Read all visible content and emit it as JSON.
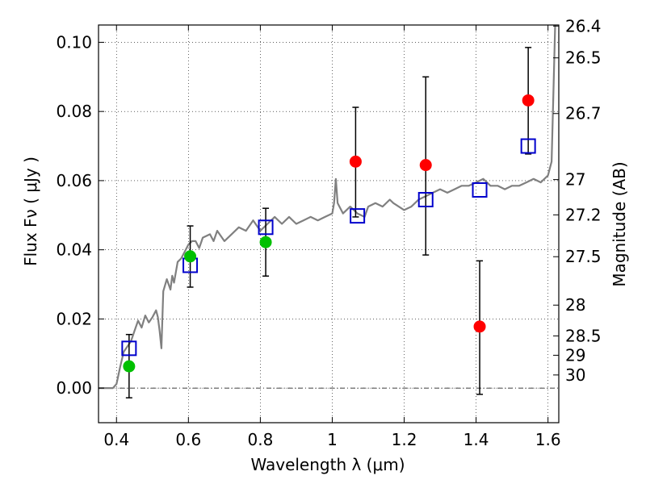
{
  "chart_data": {
    "type": "scatter",
    "xlabel": "Wavelength  λ (μm)",
    "ylabel": "Flux  Fν  ( μJy )",
    "y2label": "Magnitude (AB)",
    "xlim": [
      0.35,
      1.63
    ],
    "ylim": [
      -0.01,
      0.105
    ],
    "grid": true,
    "colors": {
      "model": "#808080",
      "red_points": "#ff0000",
      "green_points": "#00c000",
      "squares": "#0000cc",
      "error_bars": "#000000",
      "zero_line": "#000000"
    },
    "x_ticks": [
      {
        "value": 0.4,
        "label": "0.4"
      },
      {
        "value": 0.6,
        "label": "0.6"
      },
      {
        "value": 0.8,
        "label": "0.8"
      },
      {
        "value": 1.0,
        "label": "1"
      },
      {
        "value": 1.2,
        "label": "1.2"
      },
      {
        "value": 1.4,
        "label": "1.4"
      },
      {
        "value": 1.6,
        "label": "1.6"
      }
    ],
    "y_ticks": [
      {
        "value": 0.0,
        "label": "0.00"
      },
      {
        "value": 0.02,
        "label": "0.02"
      },
      {
        "value": 0.04,
        "label": "0.04"
      },
      {
        "value": 0.06,
        "label": "0.06"
      },
      {
        "value": 0.08,
        "label": "0.08"
      },
      {
        "value": 0.1,
        "label": "0.10"
      }
    ],
    "mag_ticks": [
      {
        "label": "26.4",
        "flux": 0.1047
      },
      {
        "label": "26.5",
        "flux": 0.0955
      },
      {
        "label": "26.7",
        "flux": 0.0794
      },
      {
        "label": "27",
        "flux": 0.0603
      },
      {
        "label": "27.2",
        "flux": 0.0501
      },
      {
        "label": "27.5",
        "flux": 0.038
      },
      {
        "label": "28",
        "flux": 0.024
      },
      {
        "label": "28.5",
        "flux": 0.0151
      },
      {
        "label": "29",
        "flux": 0.0095
      },
      {
        "label": "30",
        "flux": 0.0038
      }
    ],
    "series": [
      {
        "name": "model-spectrum",
        "kind": "line",
        "points": [
          [
            0.35,
            0.0
          ],
          [
            0.39,
            0.0
          ],
          [
            0.4,
            0.0012
          ],
          [
            0.41,
            0.006
          ],
          [
            0.42,
            0.0105
          ],
          [
            0.43,
            0.012
          ],
          [
            0.44,
            0.0135
          ],
          [
            0.45,
            0.0165
          ],
          [
            0.46,
            0.0195
          ],
          [
            0.47,
            0.0175
          ],
          [
            0.48,
            0.021
          ],
          [
            0.49,
            0.019
          ],
          [
            0.5,
            0.0205
          ],
          [
            0.51,
            0.0225
          ],
          [
            0.515,
            0.0205
          ],
          [
            0.52,
            0.0165
          ],
          [
            0.525,
            0.0115
          ],
          [
            0.53,
            0.028
          ],
          [
            0.54,
            0.0315
          ],
          [
            0.55,
            0.0285
          ],
          [
            0.555,
            0.0325
          ],
          [
            0.56,
            0.0305
          ],
          [
            0.57,
            0.0365
          ],
          [
            0.58,
            0.0375
          ],
          [
            0.59,
            0.0395
          ],
          [
            0.6,
            0.0415
          ],
          [
            0.61,
            0.0425
          ],
          [
            0.62,
            0.0425
          ],
          [
            0.63,
            0.0405
          ],
          [
            0.64,
            0.0435
          ],
          [
            0.66,
            0.0445
          ],
          [
            0.67,
            0.0425
          ],
          [
            0.68,
            0.0455
          ],
          [
            0.7,
            0.0425
          ],
          [
            0.72,
            0.0445
          ],
          [
            0.74,
            0.0465
          ],
          [
            0.76,
            0.0455
          ],
          [
            0.78,
            0.0485
          ],
          [
            0.8,
            0.0455
          ],
          [
            0.82,
            0.0475
          ],
          [
            0.84,
            0.0495
          ],
          [
            0.86,
            0.0475
          ],
          [
            0.88,
            0.0495
          ],
          [
            0.9,
            0.0475
          ],
          [
            0.92,
            0.0485
          ],
          [
            0.94,
            0.0495
          ],
          [
            0.96,
            0.0485
          ],
          [
            0.98,
            0.0495
          ],
          [
            1.0,
            0.0505
          ],
          [
            1.005,
            0.0535
          ],
          [
            1.01,
            0.0605
          ],
          [
            1.015,
            0.0535
          ],
          [
            1.03,
            0.0505
          ],
          [
            1.05,
            0.0525
          ],
          [
            1.07,
            0.0505
          ],
          [
            1.09,
            0.0495
          ],
          [
            1.1,
            0.0525
          ],
          [
            1.12,
            0.0535
          ],
          [
            1.14,
            0.0525
          ],
          [
            1.16,
            0.0545
          ],
          [
            1.17,
            0.0535
          ],
          [
            1.2,
            0.0515
          ],
          [
            1.22,
            0.0525
          ],
          [
            1.24,
            0.0545
          ],
          [
            1.26,
            0.0555
          ],
          [
            1.28,
            0.0565
          ],
          [
            1.3,
            0.0575
          ],
          [
            1.32,
            0.0565
          ],
          [
            1.34,
            0.0575
          ],
          [
            1.36,
            0.0585
          ],
          [
            1.38,
            0.0585
          ],
          [
            1.4,
            0.0595
          ],
          [
            1.42,
            0.0605
          ],
          [
            1.44,
            0.0585
          ],
          [
            1.46,
            0.0585
          ],
          [
            1.48,
            0.0575
          ],
          [
            1.5,
            0.0585
          ],
          [
            1.52,
            0.0585
          ],
          [
            1.54,
            0.0595
          ],
          [
            1.56,
            0.0605
          ],
          [
            1.58,
            0.0595
          ],
          [
            1.6,
            0.0615
          ],
          [
            1.61,
            0.0655
          ],
          [
            1.615,
            0.085
          ],
          [
            1.62,
            0.105
          ]
        ]
      },
      {
        "name": "red-detections",
        "kind": "points",
        "points": [
          {
            "x": 1.065,
            "y": 0.0655,
            "err_low": 0.0495,
            "err_high": 0.0812
          },
          {
            "x": 1.26,
            "y": 0.0645,
            "err_low": 0.0385,
            "err_high": 0.09
          },
          {
            "x": 1.41,
            "y": 0.0178,
            "err_low": -0.0018,
            "err_high": 0.0368
          },
          {
            "x": 1.545,
            "y": 0.0832,
            "err_low": 0.0677,
            "err_high": 0.0985
          }
        ]
      },
      {
        "name": "green-detections",
        "kind": "points",
        "points": [
          {
            "x": 0.435,
            "y": 0.0063,
            "err_low": -0.0028,
            "err_high": 0.0155
          },
          {
            "x": 0.605,
            "y": 0.0381,
            "err_low": 0.0292,
            "err_high": 0.0469
          },
          {
            "x": 0.815,
            "y": 0.0422,
            "err_low": 0.0324,
            "err_high": 0.052
          }
        ]
      },
      {
        "name": "model-photometry",
        "kind": "squares",
        "points": [
          {
            "x": 0.435,
            "y": 0.0115
          },
          {
            "x": 0.605,
            "y": 0.0355
          },
          {
            "x": 0.815,
            "y": 0.0465
          },
          {
            "x": 1.07,
            "y": 0.0498
          },
          {
            "x": 1.26,
            "y": 0.0545
          },
          {
            "x": 1.41,
            "y": 0.0573
          },
          {
            "x": 1.545,
            "y": 0.07
          }
        ]
      }
    ]
  }
}
